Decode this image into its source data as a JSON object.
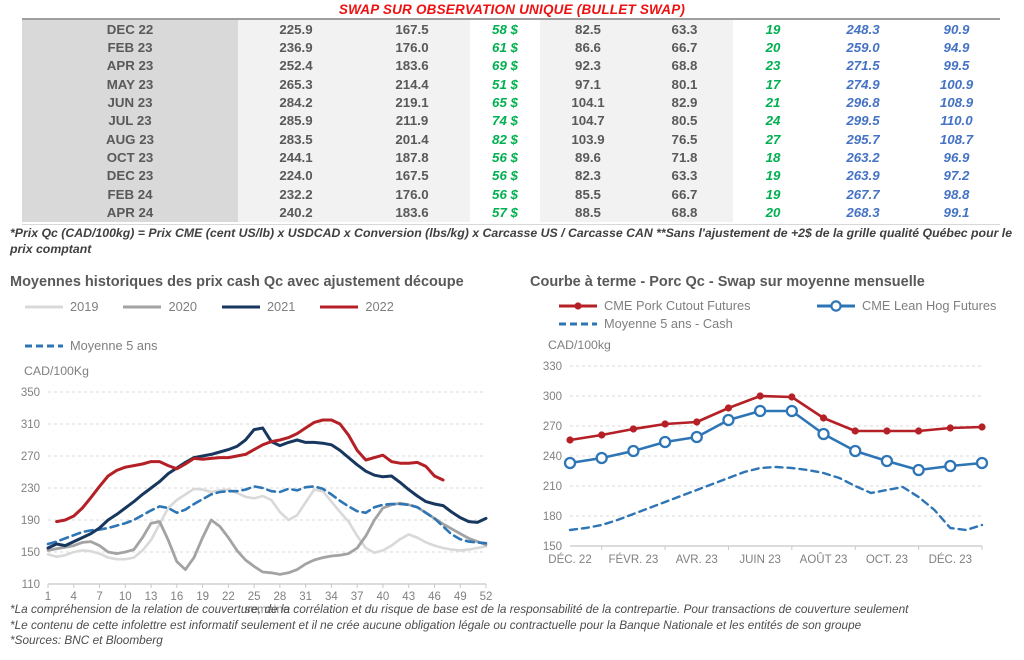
{
  "page_title": "SWAP SUR OBSERVATION UNIQUE (BULLET SWAP)",
  "colors": {
    "title_red": "#ee1111",
    "green": "#00b050",
    "blue_italic": "#4472c4",
    "chart_red": "#b42025",
    "chart_navy": "#17375e",
    "chart_steelblue": "#2e75b6",
    "gray_2020": "#a3a3a3",
    "gray_2019": "#d9d9d9",
    "text_gray": "#595959",
    "axis_gray": "#808080",
    "grid_gray": "#d9d9d9"
  },
  "table": {
    "rows": [
      [
        "DEC 22",
        "225.9",
        "167.5",
        "58 $",
        "82.5",
        "63.3",
        "19",
        "248.3",
        "90.9"
      ],
      [
        "FEB 23",
        "236.9",
        "176.0",
        "61 $",
        "86.6",
        "66.7",
        "20",
        "259.0",
        "94.9"
      ],
      [
        "APR 23",
        "252.4",
        "183.6",
        "69 $",
        "92.3",
        "68.8",
        "23",
        "271.5",
        "99.5"
      ],
      [
        "MAY 23",
        "265.3",
        "214.4",
        "51 $",
        "97.1",
        "80.1",
        "17",
        "274.9",
        "100.9"
      ],
      [
        "JUN 23",
        "284.2",
        "219.1",
        "65 $",
        "104.1",
        "82.9",
        "21",
        "296.8",
        "108.9"
      ],
      [
        "JUL 23",
        "285.9",
        "211.9",
        "74 $",
        "104.7",
        "80.5",
        "24",
        "299.5",
        "110.0"
      ],
      [
        "AUG 23",
        "283.5",
        "201.4",
        "82 $",
        "103.9",
        "76.5",
        "27",
        "295.7",
        "108.7"
      ],
      [
        "OCT 23",
        "244.1",
        "187.8",
        "56 $",
        "89.6",
        "71.8",
        "18",
        "263.2",
        "96.9"
      ],
      [
        "DEC 23",
        "224.0",
        "167.5",
        "56 $",
        "82.3",
        "63.3",
        "19",
        "263.9",
        "97.2"
      ],
      [
        "FEB 24",
        "232.2",
        "176.0",
        "56 $",
        "85.5",
        "66.7",
        "19",
        "267.7",
        "98.8"
      ],
      [
        "APR 24",
        "240.2",
        "183.6",
        "57 $",
        "88.5",
        "68.8",
        "20",
        "268.3",
        "99.1"
      ]
    ]
  },
  "table_footnote": "*Prix Qc (CAD/100kg) = Prix CME (cent US/lb) x USDCAD x Conversion (lbs/kg) x Carcasse US / Carcasse CAN **Sans l'ajustement de +2$ de la grille qualité Québec pour le prix comptant",
  "bottom_notes": [
    "*La compréhension de la relation de couverture, de la corrélation et du risque de base est de la responsabilité de la contrepartie. Pour transactions de couverture seulement",
    "*Le contenu de cette infolettre est informatif seulement et il ne crée aucune obligation légale ou contractuelle pour la Banque Nationale et les entités de son groupe",
    "*Sources: BNC et Bloomberg"
  ],
  "chart_data": [
    {
      "type": "line",
      "title": "Moyennes historiques des prix cash Qc avec ajustement découpe",
      "unit_label": "CAD/100Kg",
      "xlabel": "semaine",
      "ylim": [
        110,
        350
      ],
      "yticks": [
        110,
        150,
        190,
        230,
        270,
        310,
        350
      ],
      "xticks": [
        1,
        4,
        7,
        10,
        13,
        16,
        19,
        22,
        25,
        28,
        31,
        34,
        37,
        40,
        43,
        46,
        49,
        52
      ],
      "grid": true,
      "legend_position": "top",
      "series": [
        {
          "name": "2019",
          "color": "#d9d9d9",
          "x_start": 1,
          "dash": null,
          "width": 2.6,
          "values": [
            147,
            144,
            146,
            150,
            152,
            151,
            148,
            143,
            141,
            141,
            143,
            152,
            165,
            185,
            205,
            215,
            222,
            229,
            228,
            225,
            227,
            228,
            224,
            219,
            217,
            220,
            215,
            200,
            190,
            196,
            212,
            228,
            226,
            213,
            200,
            188,
            170,
            155,
            149,
            152,
            158,
            166,
            172,
            168,
            162,
            158,
            155,
            153,
            152,
            153,
            155,
            157
          ]
        },
        {
          "name": "2020",
          "color": "#a3a3a3",
          "x_start": 1,
          "dash": null,
          "width": 2.8,
          "values": [
            152,
            154,
            156,
            158,
            162,
            163,
            158,
            150,
            148,
            150,
            153,
            168,
            186,
            188,
            165,
            138,
            128,
            143,
            168,
            190,
            182,
            168,
            152,
            140,
            132,
            125,
            124,
            122,
            124,
            128,
            135,
            140,
            143,
            145,
            146,
            148,
            155,
            170,
            190,
            205,
            209,
            211,
            209,
            206,
            199,
            192,
            185,
            179,
            173,
            167,
            163,
            159
          ]
        },
        {
          "name": "Moyenne 5 ans",
          "color": "#2e75b6",
          "x_start": 1,
          "dash": "8 5",
          "width": 2.6,
          "values": [
            160,
            163,
            167,
            171,
            175,
            177,
            178,
            180,
            183,
            186,
            190,
            196,
            202,
            207,
            205,
            199,
            203,
            210,
            216,
            222,
            225,
            226,
            226,
            228,
            232,
            230,
            226,
            225,
            229,
            227,
            231,
            232,
            229,
            222,
            214,
            207,
            201,
            199,
            206,
            209,
            210,
            210,
            209,
            206,
            199,
            192,
            182,
            172,
            166,
            163,
            162,
            161
          ]
        },
        {
          "name": "2021",
          "color": "#17375e",
          "x_start": 1,
          "dash": null,
          "width": 3,
          "values": [
            155,
            160,
            158,
            163,
            168,
            173,
            180,
            190,
            197,
            205,
            213,
            222,
            230,
            238,
            248,
            255,
            262,
            268,
            270,
            272,
            275,
            278,
            282,
            290,
            303,
            305,
            288,
            283,
            287,
            290,
            287,
            287,
            286,
            284,
            277,
            268,
            259,
            251,
            246,
            244,
            245,
            237,
            228,
            220,
            213,
            210,
            208,
            200,
            193,
            188,
            187,
            192
          ]
        },
        {
          "name": "2022",
          "color": "#b42025",
          "x_start": 2,
          "dash": null,
          "width": 3,
          "values": [
            188,
            190,
            195,
            205,
            218,
            232,
            245,
            252,
            256,
            258,
            260,
            263,
            263,
            258,
            254,
            260,
            267,
            266,
            267,
            268,
            268,
            270,
            272,
            278,
            284,
            288,
            290,
            293,
            298,
            305,
            312,
            315,
            315,
            310,
            296,
            277,
            265,
            268,
            271,
            263,
            261,
            261,
            262,
            257,
            245,
            240
          ]
        }
      ],
      "legend_order": [
        "2019",
        "2020",
        "2021",
        "2022",
        "Moyenne 5 ans"
      ]
    },
    {
      "type": "line",
      "title": "Courbe à terme - Porc Qc - Swap sur moyenne mensuelle",
      "unit_label": "CAD/100kg",
      "ylim": [
        150,
        330
      ],
      "yticks": [
        150,
        180,
        210,
        240,
        270,
        300,
        330
      ],
      "x_tick_labels": [
        "DÉC. 22",
        "FÉVR. 23",
        "AVR. 23",
        "JUIN 23",
        "AOÛT 23",
        "OCT. 23",
        "DÉC. 23"
      ],
      "n_points": 14,
      "grid": true,
      "legend_position": "top",
      "series": [
        {
          "name": "CME Pork Cutout Futures",
          "color": "#b42025",
          "marker": "dot",
          "dash": null,
          "width": 2.6,
          "values": [
            256,
            261,
            267,
            272,
            274,
            288,
            300,
            299,
            278,
            265,
            265,
            265,
            268,
            269
          ]
        },
        {
          "name": "CME Lean Hog Futures",
          "color": "#2e75b6",
          "marker": "circle",
          "dash": null,
          "width": 2.6,
          "values": [
            233,
            238,
            245,
            254,
            259,
            276,
            285,
            285,
            262,
            245,
            235,
            226,
            230,
            233
          ]
        },
        {
          "name": "Moyenne 5 ans - Cash",
          "color": "#2e75b6",
          "marker": null,
          "dash": "7 5",
          "width": 2.4,
          "values": [
            166,
            168,
            171,
            176,
            182,
            188,
            194,
            200,
            206,
            212,
            218,
            224,
            228,
            229,
            228,
            226,
            223,
            218,
            210,
            203,
            206,
            209,
            199,
            186,
            168,
            166,
            171
          ]
        }
      ]
    }
  ]
}
